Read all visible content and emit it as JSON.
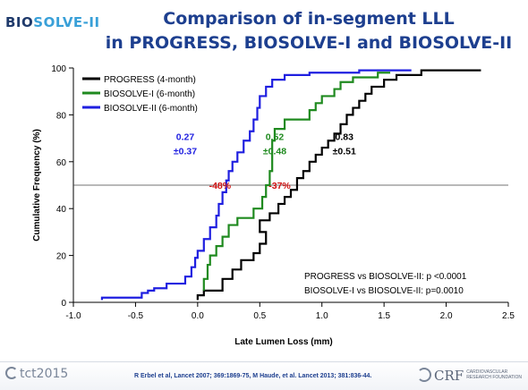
{
  "header": {
    "logo_part1": "BIO",
    "logo_part2": "SOLVE-II",
    "title_line1": "Comparison of in-segment LLL",
    "title_line2": "in PROGRESS, BIOSOLVE-I and BIOSOLVE-II"
  },
  "chart_data": {
    "type": "line",
    "title": "",
    "xlabel": "Late Lumen Loss (mm)",
    "ylabel": "Cumulative Frequency (%)",
    "xlim": [
      -1.0,
      2.5
    ],
    "ylim": [
      0,
      100
    ],
    "xticks": [
      -1.0,
      -0.5,
      0.0,
      0.5,
      1.0,
      1.5,
      2.0,
      2.5
    ],
    "xtick_labels": [
      "-1.0",
      "-0.5",
      "0.0",
      "0.5",
      "1.0",
      "1.5",
      "2.0",
      "2.5"
    ],
    "yticks": [
      0,
      20,
      40,
      60,
      80,
      100
    ],
    "ytick_labels": [
      "0",
      "20",
      "40",
      "60",
      "80",
      "100"
    ],
    "grid": false,
    "legend_position": "top-left",
    "reference_line_y": 50,
    "series": [
      {
        "name": "PROGRESS (4-month)",
        "color": "#000000",
        "points": [
          [
            0.0,
            1
          ],
          [
            0.05,
            3
          ],
          [
            0.2,
            5
          ],
          [
            0.28,
            10
          ],
          [
            0.35,
            14
          ],
          [
            0.45,
            18
          ],
          [
            0.5,
            21
          ],
          [
            0.55,
            25
          ],
          [
            0.5,
            30
          ],
          [
            0.58,
            35
          ],
          [
            0.65,
            38
          ],
          [
            0.7,
            42
          ],
          [
            0.75,
            45
          ],
          [
            0.8,
            48
          ],
          [
            0.8,
            50
          ],
          [
            0.85,
            53
          ],
          [
            0.9,
            56
          ],
          [
            0.95,
            60
          ],
          [
            1.0,
            63
          ],
          [
            1.05,
            66
          ],
          [
            1.1,
            69
          ],
          [
            1.15,
            72
          ],
          [
            1.2,
            76
          ],
          [
            1.25,
            80
          ],
          [
            1.3,
            83
          ],
          [
            1.35,
            86
          ],
          [
            1.4,
            89
          ],
          [
            1.5,
            92
          ],
          [
            1.6,
            95
          ],
          [
            1.8,
            97
          ],
          [
            2.28,
            99
          ]
        ]
      },
      {
        "name": "BIOSOLVE-I (6-month)",
        "color": "#1f8a1f",
        "points": [
          [
            0.05,
            5
          ],
          [
            0.08,
            10
          ],
          [
            0.1,
            16
          ],
          [
            0.15,
            20
          ],
          [
            0.2,
            24
          ],
          [
            0.25,
            28
          ],
          [
            0.32,
            33
          ],
          [
            0.45,
            36
          ],
          [
            0.52,
            40
          ],
          [
            0.55,
            45
          ],
          [
            0.58,
            50
          ],
          [
            0.6,
            56
          ],
          [
            0.6,
            63
          ],
          [
            0.62,
            69
          ],
          [
            0.7,
            74
          ],
          [
            0.9,
            78
          ],
          [
            0.95,
            82
          ],
          [
            1.0,
            85
          ],
          [
            1.1,
            88
          ],
          [
            1.15,
            91
          ],
          [
            1.25,
            94
          ],
          [
            1.45,
            96
          ],
          [
            1.55,
            98
          ]
        ]
      },
      {
        "name": "BIOSOLVE-II (6-month)",
        "color": "#1f1fe0",
        "points": [
          [
            -0.77,
            1
          ],
          [
            -0.45,
            2
          ],
          [
            -0.4,
            4
          ],
          [
            -0.35,
            5
          ],
          [
            -0.25,
            6
          ],
          [
            -0.1,
            8
          ],
          [
            -0.05,
            11
          ],
          [
            -0.02,
            15
          ],
          [
            0.0,
            19
          ],
          [
            0.05,
            22
          ],
          [
            0.1,
            27
          ],
          [
            0.15,
            32
          ],
          [
            0.17,
            37
          ],
          [
            0.2,
            42
          ],
          [
            0.23,
            47
          ],
          [
            0.25,
            52
          ],
          [
            0.28,
            56
          ],
          [
            0.32,
            60
          ],
          [
            0.37,
            64
          ],
          [
            0.42,
            69
          ],
          [
            0.45,
            73
          ],
          [
            0.48,
            78
          ],
          [
            0.5,
            83
          ],
          [
            0.55,
            88
          ],
          [
            0.6,
            92
          ],
          [
            0.7,
            95
          ],
          [
            0.9,
            97
          ],
          [
            1.3,
            98
          ],
          [
            1.72,
            99
          ]
        ]
      }
    ],
    "annotations": [
      {
        "text_line1": "0.27",
        "text_line2": "±0.37",
        "color": "#1f1fe0",
        "x": -0.1,
        "y": 64
      },
      {
        "text_line1": "0.52",
        "text_line2": "±0.48",
        "color": "#1f8a1f",
        "x": 0.62,
        "y": 64
      },
      {
        "text_line1": "0.83",
        "text_line2": "±0.51",
        "color": "#000000",
        "x": 1.18,
        "y": 64
      },
      {
        "text_line1": "-48%",
        "color": "#d01010",
        "x": 0.18,
        "y": 50
      },
      {
        "text_line1": "-37%",
        "color": "#d01010",
        "x": 0.66,
        "y": 50
      }
    ],
    "stats": [
      "PROGRESS vs BIOSOLVE-II: p <0.0001",
      "BIOSOLVE-I vs BIOSOLVE-II: p=0.0010"
    ]
  },
  "footer": {
    "tct_label": "tct2015",
    "references": "R Erbel et al, Lancet 2007; 369:1869-75,    M Haude,  et al. Lancet 2013;  381:836-44.",
    "crf_label": "CRF",
    "crf_sub1": "CARDIOVASCULAR",
    "crf_sub2": "RESEARCH FOUNDATION"
  }
}
